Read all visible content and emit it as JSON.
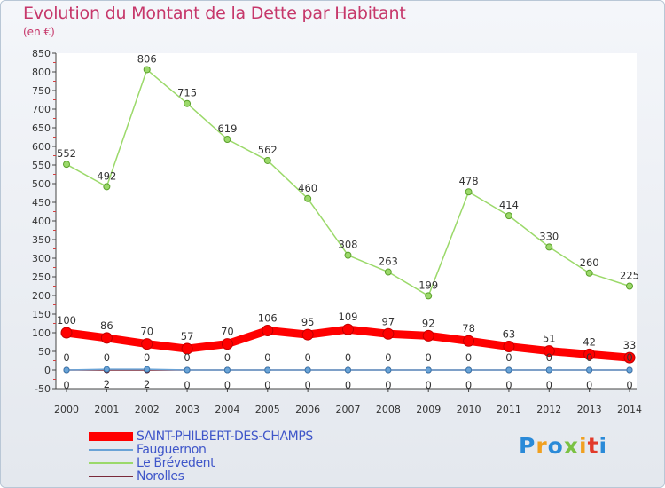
{
  "chart_data": {
    "type": "line",
    "title": "Evolution du Montant de la Dette par Habitant",
    "subtitle": "(en €)",
    "ylim": [
      -50,
      850
    ],
    "y_ticks": [
      -50,
      0,
      50,
      100,
      150,
      200,
      250,
      300,
      350,
      400,
      450,
      500,
      550,
      600,
      650,
      700,
      750,
      800,
      850
    ],
    "grid": false,
    "legend_position": "bottom-left",
    "x": [
      "2000",
      "2001",
      "2002",
      "2003",
      "2004",
      "2005",
      "2006",
      "2007",
      "2008",
      "2009",
      "2010",
      "2011",
      "2012",
      "2013",
      "2014"
    ],
    "series": [
      {
        "name": "SAINT-PHILBERT-DES-CHAMPS",
        "color": "#ff0000",
        "values": [
          100,
          86,
          70,
          57,
          70,
          106,
          95,
          109,
          97,
          92,
          78,
          63,
          51,
          42,
          33
        ]
      },
      {
        "name": "Fauguernon",
        "color": "#6aa3d6",
        "values": [
          0,
          2,
          2,
          0,
          0,
          0,
          0,
          0,
          0,
          0,
          0,
          0,
          0,
          0,
          0
        ]
      },
      {
        "name": "Le Brévedent",
        "color": "#9bd96a",
        "values": [
          552,
          492,
          806,
          715,
          619,
          562,
          460,
          308,
          263,
          199,
          478,
          414,
          330,
          260,
          225
        ]
      },
      {
        "name": "Norolles",
        "color": "#7a2a3a",
        "values": [
          0,
          0,
          0,
          0,
          0,
          0,
          0,
          0,
          0,
          0,
          0,
          0,
          0,
          0,
          0
        ]
      }
    ]
  },
  "logo": {
    "letters": [
      "P",
      "r",
      "o",
      "x",
      "i",
      "t",
      "i"
    ],
    "colors": [
      "#2a8ad8",
      "#f0a020",
      "#2a8ad8",
      "#7ac143",
      "#f0a020",
      "#e23a2a",
      "#2a8ad8"
    ]
  }
}
